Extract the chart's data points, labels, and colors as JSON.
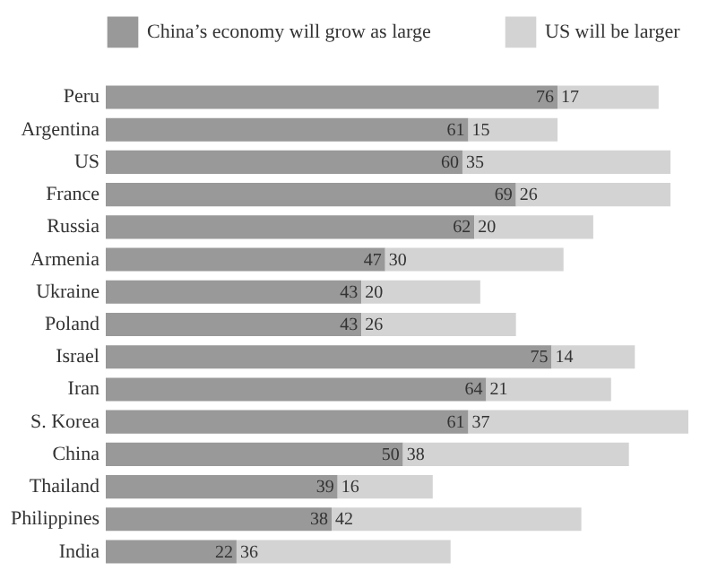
{
  "chart_data": {
    "type": "bar",
    "orientation": "horizontal",
    "stacked": true,
    "data_labels": true,
    "legend": "top",
    "categories": [
      "Peru",
      "Argentina",
      "US",
      "France",
      "Russia",
      "Armenia",
      "Ukraine",
      "Poland",
      "Israel",
      "Iran",
      "S. Korea",
      "China",
      "Thailand",
      "Philippines",
      "India"
    ],
    "series": [
      {
        "name": "China’s economy will grow as large",
        "color": "#999999",
        "values": [
          76,
          61,
          60,
          69,
          62,
          47,
          43,
          43,
          75,
          64,
          61,
          50,
          39,
          38,
          22
        ]
      },
      {
        "name": "US will be larger",
        "color": "#d3d3d3",
        "values": [
          17,
          15,
          35,
          26,
          20,
          30,
          20,
          26,
          14,
          21,
          37,
          38,
          16,
          42,
          36
        ]
      }
    ]
  }
}
